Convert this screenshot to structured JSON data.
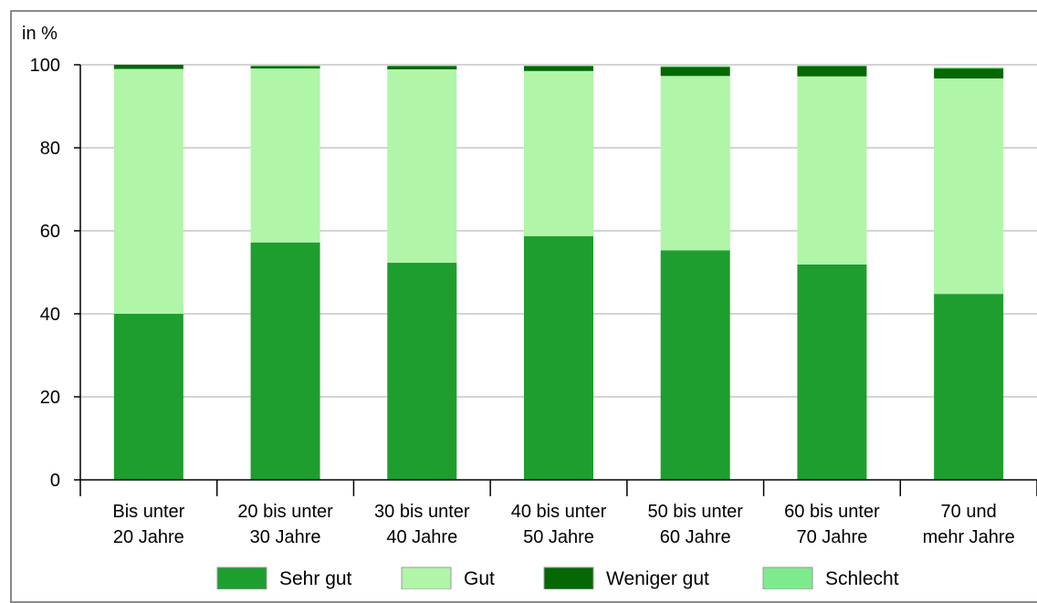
{
  "chart_data": {
    "type": "bar",
    "stacked": true,
    "ylabel": "in %",
    "ylim": [
      0,
      100
    ],
    "yticks": [
      0,
      20,
      40,
      60,
      80,
      100
    ],
    "grid": true,
    "legend_position": "bottom",
    "categories": [
      [
        "Bis unter",
        "20 Jahre"
      ],
      [
        "20 bis unter",
        "30 Jahre"
      ],
      [
        "30 bis unter",
        "40 Jahre"
      ],
      [
        "40 bis unter",
        "50 Jahre"
      ],
      [
        "50 bis unter",
        "60 Jahre"
      ],
      [
        "60 bis unter",
        "70 Jahre"
      ],
      [
        "70 und",
        "mehr Jahre"
      ]
    ],
    "series": [
      {
        "name": "Sehr gut",
        "color": "#1e9e2e",
        "values": [
          40.0,
          57.2,
          52.3,
          58.7,
          55.3,
          51.9,
          44.8
        ]
      },
      {
        "name": "Gut",
        "color": "#b0f5a8",
        "values": [
          59.0,
          41.9,
          46.6,
          39.8,
          42.0,
          45.3,
          51.9
        ]
      },
      {
        "name": "Weniger gut",
        "color": "#056805",
        "values": [
          1.0,
          0.6,
          0.8,
          1.2,
          2.2,
          2.5,
          2.4
        ]
      },
      {
        "name": "Schlecht",
        "color": "#7eea8e",
        "values": [
          0.0,
          0.1,
          0.1,
          0.1,
          0.2,
          0.1,
          0.3
        ]
      }
    ]
  }
}
